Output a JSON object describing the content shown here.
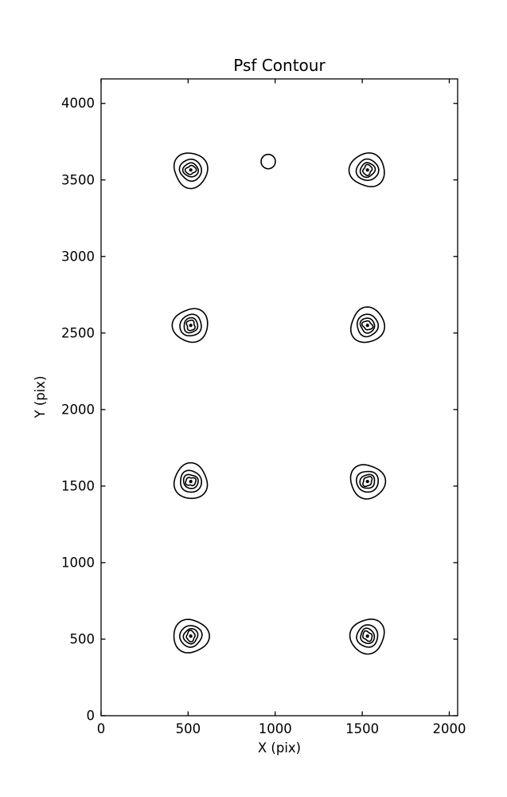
{
  "figure": {
    "background": "#ffffff",
    "line_color": "#000000"
  },
  "chart_data": {
    "type": "contour",
    "title": "Psf Contour",
    "xlabel": "X (pix)",
    "ylabel": "Y (pix)",
    "xlim": [
      0,
      2048
    ],
    "ylim": [
      0,
      4160
    ],
    "xticks": [
      0,
      500,
      1000,
      1500,
      2000
    ],
    "yticks": [
      0,
      500,
      1000,
      1500,
      2000,
      2500,
      3000,
      3500,
      4000
    ],
    "grid": false,
    "legend": null,
    "tick_direction": "in",
    "tick_sides": [
      "left",
      "right",
      "top",
      "bottom"
    ],
    "sources": [
      {
        "x": 515,
        "y": 520
      },
      {
        "x": 1530,
        "y": 520
      },
      {
        "x": 515,
        "y": 1530
      },
      {
        "x": 1530,
        "y": 1530
      },
      {
        "x": 515,
        "y": 2550
      },
      {
        "x": 1530,
        "y": 2550
      },
      {
        "x": 515,
        "y": 3565
      },
      {
        "x": 1530,
        "y": 3565
      }
    ],
    "contour_levels": {
      "outer_radius_x": 98,
      "outer_radius_y": 112,
      "radius_fractions": [
        1.0,
        0.63,
        0.42,
        0.27,
        0.1
      ]
    },
    "faint_source": {
      "x": 960,
      "y": 3620,
      "radius_x": 41,
      "radius_y": 47
    }
  }
}
